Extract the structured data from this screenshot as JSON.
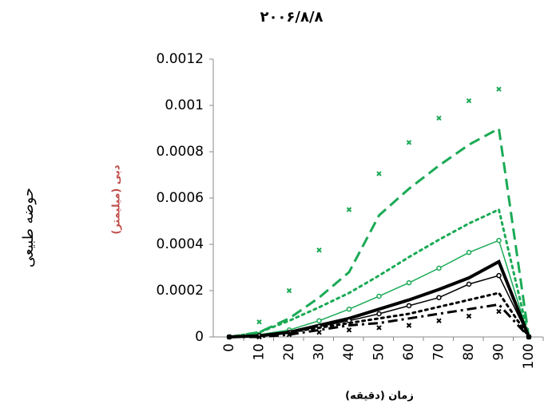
{
  "chart_data": {
    "type": "line",
    "title": "۲۰۰۶/۸/۸",
    "side_label": "حوضه طبیعی",
    "y_label": "دبی (میلیمتر)",
    "x_label": "زمان (دقیقه)",
    "x": [
      0,
      10,
      20,
      30,
      40,
      50,
      60,
      70,
      80,
      90,
      100
    ],
    "xlim": [
      0,
      100
    ],
    "xticks": [
      0,
      10,
      20,
      30,
      40,
      50,
      60,
      70,
      80,
      90,
      100
    ],
    "ylim": [
      0,
      0.0012
    ],
    "yticks": [
      0,
      0.0002,
      0.0004,
      0.0006,
      0.0008,
      0.001,
      0.0012
    ],
    "series": [
      {
        "color": "#1aaa55",
        "dash": "none",
        "marker": "x",
        "width": 0,
        "values": [
          0,
          6.5e-05,
          0.0002,
          0.000375,
          0.00055,
          0.000705,
          0.00084,
          0.000945,
          0.00102,
          0.00107,
          0
        ]
      },
      {
        "color": "#1aaa55",
        "dash": "dashed",
        "marker": "none",
        "width": 3,
        "values": [
          0,
          2e-05,
          8e-05,
          0.00017,
          0.00028,
          0.000525,
          0.00064,
          0.00074,
          0.00083,
          0.0009,
          0
        ]
      },
      {
        "color": "#1aaa55",
        "dash": "dotted",
        "marker": "none",
        "width": 3,
        "values": [
          0,
          2e-05,
          7e-05,
          0.000128,
          0.00019,
          0.000265,
          0.000345,
          0.00042,
          0.00049,
          0.00055,
          0
        ]
      },
      {
        "color": "#1aaa55",
        "dash": "solid",
        "marker": "circle",
        "width": 1.5,
        "values": [
          0,
          1e-05,
          3e-05,
          7e-05,
          0.00012,
          0.000176,
          0.000234,
          0.000297,
          0.000365,
          0.000417,
          0
        ]
      },
      {
        "color": "#000000",
        "dash": "solid",
        "marker": "none",
        "width": 4,
        "values": [
          0,
          5e-06,
          2e-05,
          5e-05,
          8e-05,
          0.00012,
          0.00016,
          0.000205,
          0.000255,
          0.000325,
          0
        ]
      },
      {
        "color": "#000000",
        "dash": "solid",
        "marker": "circle",
        "width": 1.5,
        "values": [
          0,
          5e-06,
          2e-05,
          4.5e-05,
          7e-05,
          0.0001,
          0.000135,
          0.00017,
          0.000228,
          0.000265,
          0
        ]
      },
      {
        "color": "#000000",
        "dash": "dotted",
        "marker": "none",
        "width": 3,
        "values": [
          0,
          5e-06,
          2e-05,
          4e-05,
          6e-05,
          8e-05,
          0.0001,
          0.00013,
          0.00016,
          0.00019,
          0
        ]
      },
      {
        "color": "#000000",
        "dash": "dashdot",
        "marker": "none",
        "width": 3,
        "values": [
          0,
          0,
          1e-05,
          3e-05,
          5e-05,
          6e-05,
          8e-05,
          0.0001,
          0.00012,
          0.00014,
          0
        ]
      },
      {
        "color": "#000000",
        "dash": "none",
        "marker": "x",
        "width": 0,
        "values": [
          0,
          0,
          1e-05,
          2e-05,
          3e-05,
          4e-05,
          5e-05,
          7e-05,
          9e-05,
          0.00011,
          0
        ]
      }
    ]
  }
}
